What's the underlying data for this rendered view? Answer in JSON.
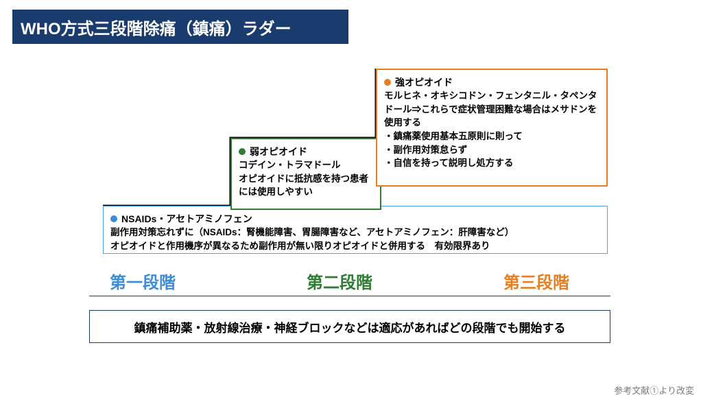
{
  "title": {
    "text": "WHO方式三段階除痛（鎮痛）ラダー",
    "bg_color": "#1a3b6e",
    "text_color": "#ffffff",
    "font_size": 24
  },
  "ladder": {
    "staircase_stroke": "#000000",
    "staircase_width": 3,
    "step3": {
      "border_color": "#e67e22",
      "border_width": 2,
      "bullet_color": "#e67e22",
      "heading": "強オピオイド",
      "body": "モルヒネ・オキシコドン・フェンタニル・タペンタドール⇒これらで症状管理困難な場合はメサドンを使用する\n・鎮痛薬使用基本五原則に則って\n・副作用対策怠らず\n・自信を持って説明し処方する"
    },
    "step2": {
      "border_color": "#2e7d32",
      "border_width": 2,
      "bullet_color": "#2e7d32",
      "heading": "弱オピオイド",
      "body": "コデイン・トラマドール\nオピオイドに抵抗感を持つ患者には使用しやすい"
    },
    "step1": {
      "border_color": "#4aa3df",
      "border_width": 1.5,
      "bullet_color": "#3b8dd6",
      "heading": "NSAIDs・アセトアミノフェン",
      "body": "副作用対策忘れずに（NSAIDs：腎機能障害、胃腸障害など、アセトアミノフェン：肝障害など）\nオピオイドと作用機序が異なるため副作用が無い限りオピオイドと併用する　有効限界あり"
    }
  },
  "stages": {
    "underline_color": "#1a3b6e",
    "items": [
      {
        "label": "第一段階",
        "color": "#3b8dd6"
      },
      {
        "label": "第二段階",
        "color": "#2e7d32"
      },
      {
        "label": "第三段階",
        "color": "#e67e22"
      }
    ]
  },
  "footer": {
    "text": "鎮痛補助薬・放射線治療・神経ブロックなどは適応があればどの段階でも開始する",
    "border_color": "#1a3b6e",
    "border_width": 1.5,
    "text_color": "#000000"
  },
  "reference": {
    "text": "参考文献①より改変",
    "color": "#7a7a7a"
  }
}
